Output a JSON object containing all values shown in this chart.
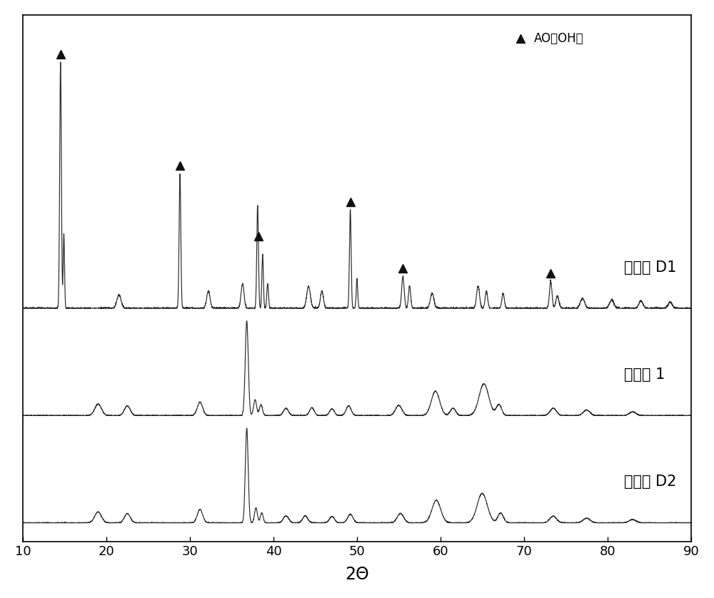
{
  "xlabel": "2Θ",
  "xlim": [
    10,
    90
  ],
  "background_color": "#ffffff",
  "legend_label": "AO（OH）",
  "labels": [
    "嵔化剂 D1",
    "嵔化剂 1",
    "嵔化剂 D2"
  ],
  "line_color": "#2a2a2a",
  "marker_color": "#111111",
  "label_fontsize": 15,
  "xlabel_fontsize": 17,
  "tick_fontsize": 13,
  "d1_triangle_positions": [
    14.5,
    28.8,
    38.2,
    49.2,
    55.5,
    73.2
  ]
}
